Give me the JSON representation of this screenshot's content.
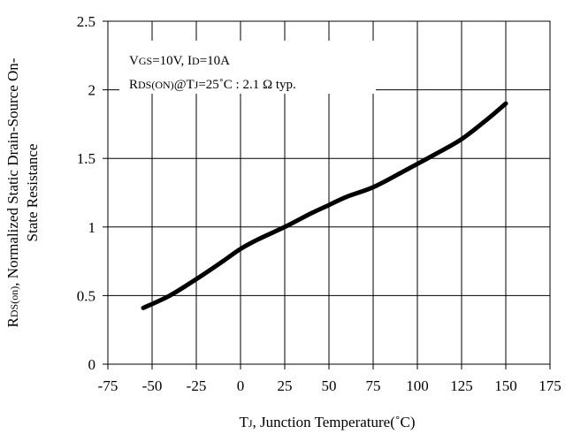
{
  "chart_data": {
    "type": "line",
    "title": "",
    "xlabel": {
      "main": "T",
      "sub": "J",
      "rest": ", Junction Temperature(˚C)"
    },
    "ylabel": {
      "line1_main": "R",
      "line1_sub": "DS(on)",
      "line1_rest": ", Normalized Static Drain-Source On-",
      "line2": "State Resistance"
    },
    "xlim": [
      -75,
      175
    ],
    "ylim": [
      0,
      2.5
    ],
    "xticks": [
      "-75",
      "-50",
      "-25",
      "0",
      "25",
      "50",
      "75",
      "100",
      "125",
      "150",
      "175"
    ],
    "yticks": [
      "0",
      "0.5",
      "1",
      "1.5",
      "2",
      "2.5"
    ],
    "grid": true,
    "series": [
      {
        "x": [
          -55,
          -40,
          -25,
          -10,
          0,
          10,
          25,
          40,
          50,
          60,
          75,
          90,
          100,
          110,
          125,
          140,
          150
        ],
        "y": [
          0.41,
          0.5,
          0.62,
          0.75,
          0.84,
          0.91,
          1.0,
          1.1,
          1.16,
          1.22,
          1.29,
          1.39,
          1.46,
          1.53,
          1.64,
          1.79,
          1.9
        ]
      }
    ],
    "annotations": {
      "line1": {
        "t1": "V",
        "s1": "GS",
        "t2": "=10V, I",
        "s2": "D",
        "t3": "=10A"
      },
      "line2": {
        "t1": "R",
        "s1": "DS(ON)",
        "t2": "@T",
        "s2": "J",
        "t3": "=25˚C : 2.1 Ω  typ."
      }
    }
  }
}
